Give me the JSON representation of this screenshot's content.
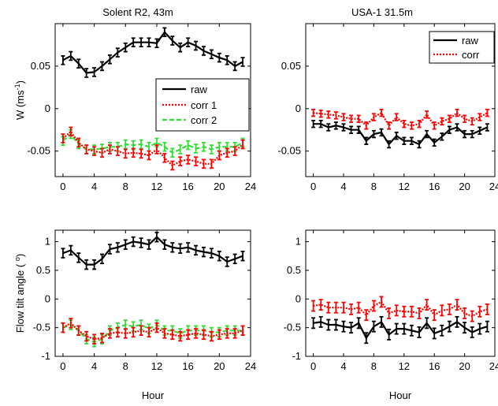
{
  "chart_data": [
    {
      "type": "line",
      "title": "Solent R2, 43m",
      "xlabel": "",
      "ylabel": "W (ms",
      "ylabel_sup": "-1",
      "ylabel_end": ")",
      "xlim": [
        -1,
        24
      ],
      "ylim": [
        -0.08,
        0.1
      ],
      "xticks": [
        "0",
        "4",
        "8",
        "12",
        "16",
        "20",
        "24"
      ],
      "yticks": [
        "-0.05",
        "0",
        "0.05"
      ],
      "legend": "inside-right",
      "series": [
        {
          "name": "raw",
          "color": "#000000",
          "style": "solid",
          "y": [
            0.057,
            0.062,
            0.053,
            0.042,
            0.043,
            0.05,
            0.058,
            0.066,
            0.072,
            0.078,
            0.078,
            0.078,
            0.077,
            0.09,
            0.08,
            0.072,
            0.078,
            0.074,
            0.068,
            0.064,
            0.06,
            0.057,
            0.05,
            0.055
          ]
        },
        {
          "name": "corr 1",
          "color": "#ff0000",
          "style": "dotted",
          "y": [
            -0.035,
            -0.027,
            -0.04,
            -0.048,
            -0.05,
            -0.052,
            -0.048,
            -0.05,
            -0.053,
            -0.052,
            -0.053,
            -0.055,
            -0.048,
            -0.058,
            -0.067,
            -0.062,
            -0.06,
            -0.062,
            -0.065,
            -0.065,
            -0.055,
            -0.052,
            -0.05,
            -0.042
          ]
        },
        {
          "name": "corr 2",
          "color": "#33dd33",
          "style": "dashed",
          "y": [
            -0.038,
            -0.03,
            -0.042,
            -0.048,
            -0.048,
            -0.047,
            -0.045,
            -0.045,
            -0.042,
            -0.043,
            -0.042,
            -0.045,
            -0.04,
            -0.045,
            -0.052,
            -0.048,
            -0.043,
            -0.047,
            -0.045,
            -0.048,
            -0.045,
            -0.045,
            -0.045,
            -0.04
          ]
        }
      ],
      "x": [
        0,
        1,
        2,
        3,
        4,
        5,
        6,
        7,
        8,
        9,
        10,
        11,
        12,
        13,
        14,
        15,
        16,
        17,
        18,
        19,
        20,
        21,
        22,
        23
      ],
      "err": 0.005
    },
    {
      "type": "line",
      "title": "USA-1 31.5m",
      "xlabel": "",
      "ylabel": "",
      "xlim": [
        -1,
        24
      ],
      "ylim": [
        -0.08,
        0.1
      ],
      "xticks": [
        "0",
        "4",
        "8",
        "12",
        "16",
        "20",
        "24"
      ],
      "yticks": [
        "-0.05",
        "0",
        "0.05"
      ],
      "legend": "top-right",
      "series": [
        {
          "name": "raw",
          "color": "#000000",
          "style": "solid",
          "y": [
            -0.018,
            -0.018,
            -0.022,
            -0.02,
            -0.022,
            -0.025,
            -0.025,
            -0.038,
            -0.03,
            -0.028,
            -0.042,
            -0.032,
            -0.038,
            -0.038,
            -0.042,
            -0.03,
            -0.04,
            -0.033,
            -0.025,
            -0.022,
            -0.03,
            -0.03,
            -0.026,
            -0.022
          ]
        },
        {
          "name": "corr",
          "color": "#ff0000",
          "style": "dotted",
          "y": [
            -0.005,
            -0.006,
            -0.007,
            -0.008,
            -0.01,
            -0.012,
            -0.012,
            -0.02,
            -0.01,
            -0.005,
            -0.02,
            -0.01,
            -0.018,
            -0.02,
            -0.018,
            -0.007,
            -0.02,
            -0.015,
            -0.012,
            -0.005,
            -0.012,
            -0.015,
            -0.01,
            -0.005
          ]
        }
      ],
      "x": [
        0,
        1,
        2,
        3,
        4,
        5,
        6,
        7,
        8,
        9,
        10,
        11,
        12,
        13,
        14,
        15,
        16,
        17,
        18,
        19,
        20,
        21,
        22,
        23
      ],
      "err": 0.004
    },
    {
      "type": "line",
      "title": "",
      "xlabel": "Hour",
      "ylabel": "Flow tilt angle ( ",
      "ylabel_sup": "o",
      "ylabel_end": ")",
      "xlim": [
        -1,
        24
      ],
      "ylim": [
        -1,
        1.2
      ],
      "xticks": [
        "0",
        "4",
        "8",
        "12",
        "16",
        "20",
        "24"
      ],
      "yticks": [
        "-1",
        "-0.5",
        "0",
        "0.5",
        "1"
      ],
      "series": [
        {
          "name": "raw",
          "color": "#000000",
          "style": "solid",
          "y": [
            0.8,
            0.85,
            0.72,
            0.6,
            0.6,
            0.7,
            0.87,
            0.9,
            0.95,
            1.0,
            0.98,
            0.95,
            1.08,
            0.95,
            0.9,
            0.88,
            0.9,
            0.85,
            0.82,
            0.8,
            0.75,
            0.65,
            0.7,
            0.75
          ]
        },
        {
          "name": "corr 1",
          "color": "#ff0000",
          "style": "dotted",
          "y": [
            -0.5,
            -0.42,
            -0.55,
            -0.65,
            -0.7,
            -0.68,
            -0.6,
            -0.58,
            -0.6,
            -0.58,
            -0.55,
            -0.58,
            -0.5,
            -0.6,
            -0.62,
            -0.65,
            -0.62,
            -0.6,
            -0.62,
            -0.65,
            -0.62,
            -0.6,
            -0.6,
            -0.55
          ]
        },
        {
          "name": "corr 2",
          "color": "#33dd33",
          "style": "dashed",
          "y": [
            -0.5,
            -0.45,
            -0.55,
            -0.7,
            -0.75,
            -0.7,
            -0.55,
            -0.5,
            -0.45,
            -0.48,
            -0.45,
            -0.52,
            -0.45,
            -0.55,
            -0.55,
            -0.6,
            -0.55,
            -0.55,
            -0.55,
            -0.58,
            -0.58,
            -0.55,
            -0.55,
            -0.55
          ]
        }
      ],
      "x": [
        0,
        1,
        2,
        3,
        4,
        5,
        6,
        7,
        8,
        9,
        10,
        11,
        12,
        13,
        14,
        15,
        16,
        17,
        18,
        19,
        20,
        21,
        22,
        23
      ],
      "err": 0.08
    },
    {
      "type": "line",
      "title": "",
      "xlabel": "Hour",
      "ylabel": "",
      "xlim": [
        -1,
        24
      ],
      "ylim": [
        -1,
        1.2
      ],
      "xticks": [
        "0",
        "4",
        "8",
        "12",
        "16",
        "20",
        "24"
      ],
      "yticks": [
        "-1",
        "-0.5",
        "0",
        "0.5",
        "1"
      ],
      "series": [
        {
          "name": "raw",
          "color": "#000000",
          "style": "solid",
          "y": [
            -0.42,
            -0.4,
            -0.45,
            -0.45,
            -0.48,
            -0.5,
            -0.42,
            -0.68,
            -0.48,
            -0.4,
            -0.62,
            -0.52,
            -0.52,
            -0.55,
            -0.58,
            -0.42,
            -0.6,
            -0.55,
            -0.48,
            -0.4,
            -0.5,
            -0.58,
            -0.52,
            -0.48
          ]
        },
        {
          "name": "corr",
          "color": "#ff0000",
          "style": "dotted",
          "y": [
            -0.12,
            -0.1,
            -0.15,
            -0.15,
            -0.15,
            -0.18,
            -0.15,
            -0.28,
            -0.12,
            -0.05,
            -0.25,
            -0.2,
            -0.22,
            -0.22,
            -0.25,
            -0.1,
            -0.28,
            -0.2,
            -0.18,
            -0.1,
            -0.25,
            -0.3,
            -0.22,
            -0.18
          ]
        }
      ],
      "x": [
        0,
        1,
        2,
        3,
        4,
        5,
        6,
        7,
        8,
        9,
        10,
        11,
        12,
        13,
        14,
        15,
        16,
        17,
        18,
        19,
        20,
        21,
        22,
        23
      ],
      "err": 0.09
    }
  ]
}
